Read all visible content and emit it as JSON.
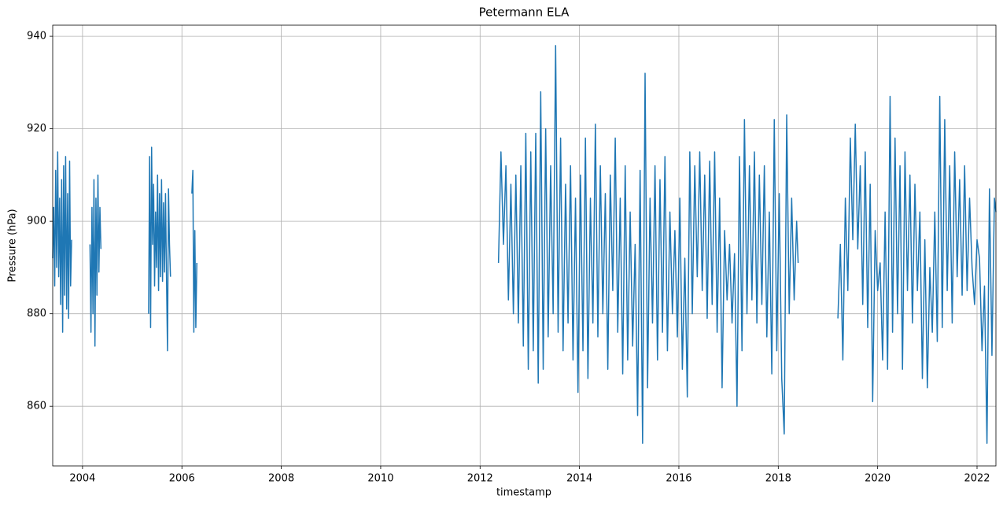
{
  "chart_data": {
    "type": "line",
    "title": "Petermann ELA",
    "x_label": "timestamp",
    "y_label": "Pressure (hPa)",
    "color": "#1f77b4",
    "grid": true,
    "xlim": [
      2003.4,
      2022.38
    ],
    "ylim": [
      847.1,
      942.4
    ],
    "xticks": [
      2004,
      2006,
      2008,
      2010,
      2012,
      2014,
      2016,
      2018,
      2020,
      2022
    ],
    "yticks": [
      860,
      880,
      900,
      920,
      940
    ],
    "x": [
      2003.4,
      2003.42,
      2003.44,
      2003.46,
      2003.48,
      2003.5,
      2003.52,
      2003.54,
      2003.56,
      2003.58,
      2003.6,
      2003.62,
      2003.64,
      2003.66,
      2003.68,
      2003.7,
      2003.72,
      2003.74,
      2003.76,
      2003.78,
      2003.9,
      2004.15,
      2004.17,
      2004.19,
      2004.21,
      2004.23,
      2004.25,
      2004.27,
      2004.29,
      2004.31,
      2004.33,
      2004.35,
      2004.37,
      2004.8,
      2005.33,
      2005.35,
      2005.37,
      2005.39,
      2005.41,
      2005.43,
      2005.45,
      2005.47,
      2005.49,
      2005.51,
      2005.53,
      2005.55,
      2005.57,
      2005.59,
      2005.61,
      2005.63,
      2005.65,
      2005.67,
      2005.69,
      2005.71,
      2005.73,
      2005.75,
      2005.77,
      2006.0,
      2006.2,
      2006.22,
      2006.24,
      2006.26,
      2006.28,
      2006.3,
      2009,
      2012.37,
      2012.42,
      2012.47,
      2012.52,
      2012.57,
      2012.62,
      2012.67,
      2012.72,
      2012.77,
      2012.82,
      2012.87,
      2012.92,
      2012.97,
      2013.02,
      2013.07,
      2013.12,
      2013.17,
      2013.22,
      2013.27,
      2013.32,
      2013.37,
      2013.42,
      2013.47,
      2013.52,
      2013.57,
      2013.62,
      2013.67,
      2013.72,
      2013.77,
      2013.82,
      2013.87,
      2013.92,
      2013.97,
      2014.02,
      2014.07,
      2014.12,
      2014.17,
      2014.22,
      2014.27,
      2014.32,
      2014.37,
      2014.42,
      2014.47,
      2014.52,
      2014.57,
      2014.62,
      2014.67,
      2014.72,
      2014.77,
      2014.82,
      2014.87,
      2014.92,
      2014.97,
      2015.02,
      2015.07,
      2015.12,
      2015.17,
      2015.22,
      2015.27,
      2015.32,
      2015.37,
      2015.42,
      2015.47,
      2015.52,
      2015.57,
      2015.62,
      2015.67,
      2015.72,
      2015.77,
      2015.82,
      2015.87,
      2015.92,
      2015.97,
      2016.02,
      2016.07,
      2016.12,
      2016.17,
      2016.22,
      2016.27,
      2016.32,
      2016.37,
      2016.42,
      2016.47,
      2016.52,
      2016.57,
      2016.62,
      2016.67,
      2016.72,
      2016.77,
      2016.82,
      2016.87,
      2016.92,
      2016.97,
      2017.02,
      2017.07,
      2017.12,
      2017.17,
      2017.22,
      2017.27,
      2017.32,
      2017.37,
      2017.42,
      2017.47,
      2017.52,
      2017.57,
      2017.62,
      2017.67,
      2017.72,
      2017.77,
      2017.82,
      2017.87,
      2017.92,
      2017.97,
      2018.02,
      2018.07,
      2018.12,
      2018.17,
      2018.22,
      2018.27,
      2018.32,
      2018.37,
      2018.4,
      2018.8,
      2019.2,
      2019.25,
      2019.3,
      2019.35,
      2019.4,
      2019.45,
      2019.5,
      2019.55,
      2019.6,
      2019.65,
      2019.7,
      2019.75,
      2019.8,
      2019.85,
      2019.9,
      2019.95,
      2020.0,
      2020.05,
      2020.1,
      2020.15,
      2020.2,
      2020.25,
      2020.3,
      2020.35,
      2020.4,
      2020.45,
      2020.5,
      2020.55,
      2020.6,
      2020.65,
      2020.7,
      2020.75,
      2020.8,
      2020.85,
      2020.9,
      2020.95,
      2021.0,
      2021.05,
      2021.1,
      2021.15,
      2021.2,
      2021.25,
      2021.3,
      2021.35,
      2021.4,
      2021.45,
      2021.5,
      2021.55,
      2021.6,
      2021.65,
      2021.7,
      2021.75,
      2021.8,
      2021.85,
      2021.9,
      2021.95,
      2022.0,
      2022.05,
      2022.1,
      2022.15,
      2022.2,
      2022.25,
      2022.3,
      2022.35,
      2022.38
    ],
    "values": [
      892,
      903,
      886,
      911,
      890,
      915,
      888,
      905,
      882,
      909,
      876,
      912,
      884,
      914,
      881,
      906,
      879,
      913,
      886,
      896,
      null,
      895,
      876,
      903,
      880,
      909,
      873,
      905,
      884,
      910,
      889,
      903,
      894,
      null,
      880,
      914,
      877,
      916,
      895,
      908,
      886,
      902,
      890,
      910,
      885,
      906,
      888,
      909,
      887,
      904,
      889,
      906,
      888,
      872,
      907,
      895,
      888,
      null,
      906,
      911,
      876,
      898,
      877,
      891,
      null,
      891,
      915,
      895,
      912,
      883,
      908,
      880,
      910,
      878,
      912,
      873,
      919,
      868,
      915,
      872,
      919,
      865,
      928,
      868,
      920,
      875,
      912,
      880,
      938,
      876,
      918,
      872,
      908,
      878,
      912,
      870,
      905,
      863,
      910,
      872,
      918,
      866,
      905,
      878,
      921,
      875,
      912,
      880,
      906,
      868,
      910,
      885,
      918,
      876,
      905,
      867,
      912,
      870,
      902,
      873,
      895,
      858,
      911,
      852,
      932,
      864,
      905,
      878,
      912,
      870,
      909,
      876,
      914,
      872,
      902,
      880,
      898,
      875,
      905,
      868,
      892,
      862,
      915,
      880,
      912,
      888,
      915,
      885,
      910,
      879,
      913,
      882,
      915,
      876,
      905,
      864,
      898,
      883,
      895,
      878,
      893,
      860,
      914,
      872,
      922,
      880,
      912,
      883,
      915,
      878,
      910,
      882,
      912,
      875,
      902,
      867,
      922,
      872,
      906,
      866,
      854,
      923,
      880,
      905,
      883,
      900,
      891,
      null,
      879,
      895,
      870,
      905,
      885,
      918,
      896,
      921,
      894,
      912,
      882,
      915,
      877,
      908,
      861,
      898,
      885,
      891,
      870,
      902,
      868,
      927,
      876,
      918,
      880,
      912,
      868,
      915,
      885,
      910,
      878,
      908,
      885,
      902,
      866,
      896,
      864,
      890,
      876,
      902,
      874,
      927,
      877,
      922,
      885,
      912,
      878,
      915,
      888,
      909,
      884,
      912,
      885,
      905,
      890,
      882,
      896,
      892,
      872,
      886,
      852,
      907,
      871,
      905,
      902
    ]
  }
}
